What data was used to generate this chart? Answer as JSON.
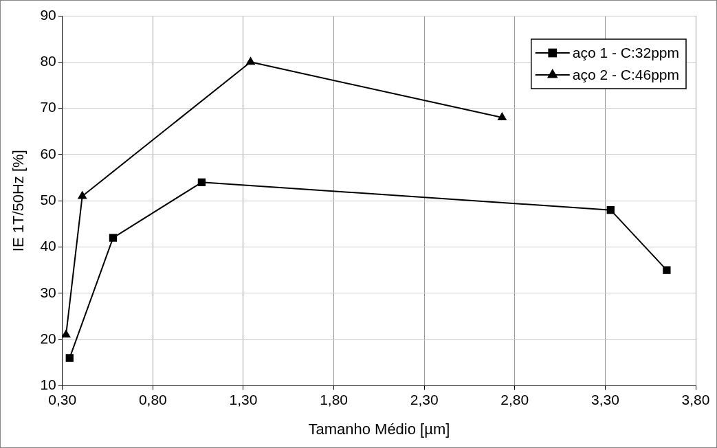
{
  "chart_data": {
    "type": "line",
    "xlabel": "Tamanho Médio [µm]",
    "ylabel": "IE 1T/50Hz [%]",
    "series": [
      {
        "name": "aço 1 - C:32ppm",
        "color": "#000000",
        "marker": "square",
        "x": [
          0.34,
          0.58,
          1.07,
          3.33,
          3.64
        ],
        "values": [
          16,
          42,
          54,
          48,
          35
        ]
      },
      {
        "name": "aço 2 - C:46ppm",
        "color": "#000000",
        "marker": "triangle",
        "x": [
          0.32,
          0.41,
          1.34,
          2.73
        ],
        "values": [
          21,
          51,
          80,
          68
        ]
      }
    ],
    "xlim": [
      0.3,
      3.8
    ],
    "xticks": [
      {
        "value": 0.3,
        "label": "0,30"
      },
      {
        "value": 0.8,
        "label": "0,80"
      },
      {
        "value": 1.3,
        "label": "1,30"
      },
      {
        "value": 1.8,
        "label": "1,80"
      },
      {
        "value": 2.3,
        "label": "2,30"
      },
      {
        "value": 2.8,
        "label": "2,80"
      },
      {
        "value": 3.3,
        "label": "3,30"
      },
      {
        "value": 3.8,
        "label": "3,80"
      }
    ],
    "ylim": [
      10,
      90
    ],
    "yticks": [
      10,
      20,
      30,
      40,
      50,
      60,
      70,
      80,
      90
    ],
    "grid": true,
    "legend": "top right"
  }
}
